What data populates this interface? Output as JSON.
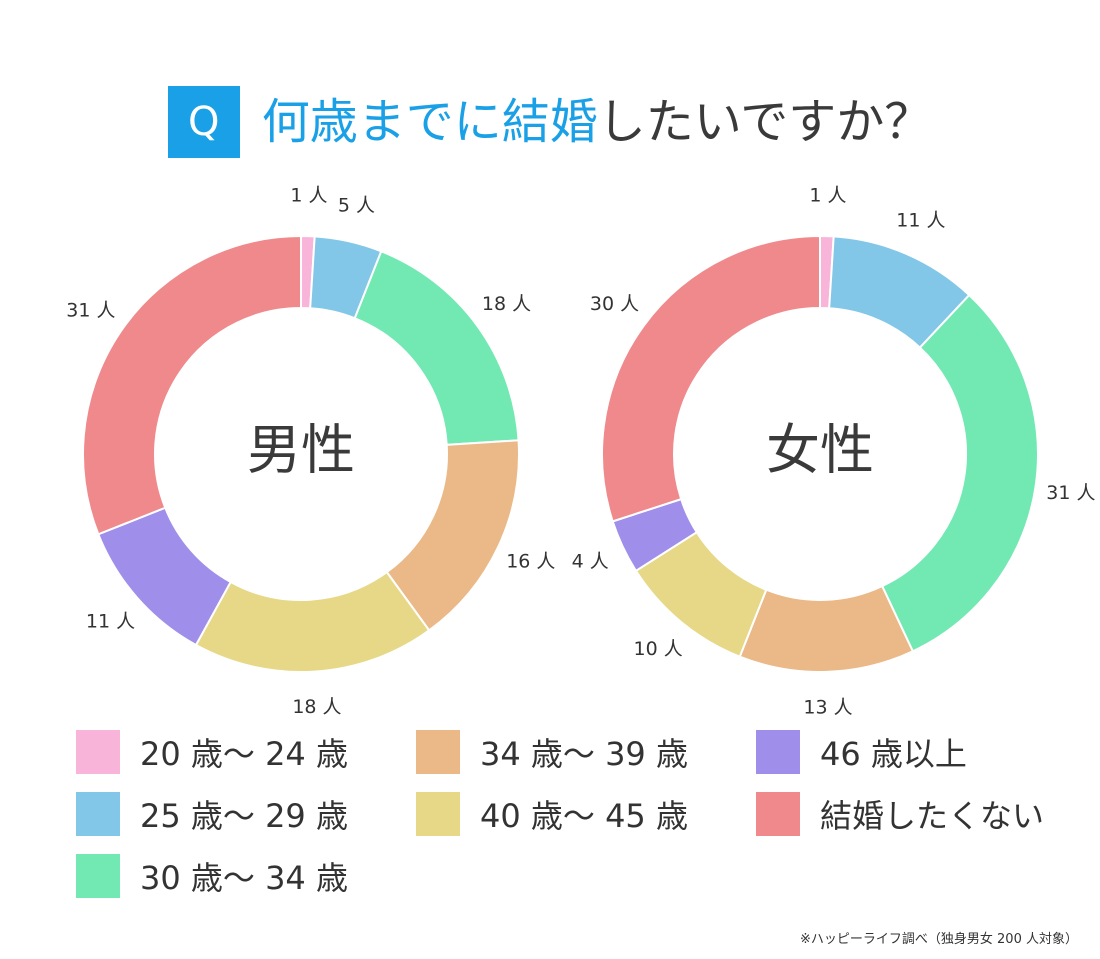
{
  "title": {
    "badge": "Q",
    "main": "何歳までに結婚",
    "rest": "したいですか？"
  },
  "chart_data": [
    {
      "type": "pie",
      "subtype": "donut",
      "title": "男性",
      "categories": [
        "20 歳〜 24 歳",
        "25 歳〜 29 歳",
        "30 歳〜 34 歳",
        "34 歳〜 39 歳",
        "40 歳〜 45 歳",
        "46 歳以上",
        "結婚したくない"
      ],
      "values": [
        1,
        5,
        18,
        16,
        18,
        11,
        31
      ],
      "labels": [
        "1 人",
        "5 人",
        "18 人",
        "16 人",
        "18 人",
        "11 人",
        "31 人"
      ]
    },
    {
      "type": "pie",
      "subtype": "donut",
      "title": "女性",
      "categories": [
        "20 歳〜 24 歳",
        "25 歳〜 29 歳",
        "30 歳〜 34 歳",
        "34 歳〜 39 歳",
        "40 歳〜 45 歳",
        "46 歳以上",
        "結婚したくない"
      ],
      "values": [
        1,
        11,
        31,
        13,
        10,
        4,
        30
      ],
      "labels": [
        "1 人",
        "11 人",
        "31 人",
        "13 人",
        "10 人",
        "4 人",
        "30 人"
      ]
    }
  ],
  "colors": [
    "#f8b4d9",
    "#82c6e8",
    "#72e8b2",
    "#ebb887",
    "#e6d886",
    "#a08fea",
    "#f0898b"
  ],
  "legend": [
    {
      "label": "20 歳〜 24 歳",
      "color": "#f8b4d9"
    },
    {
      "label": "25 歳〜 29 歳",
      "color": "#82c6e8"
    },
    {
      "label": "30 歳〜 34 歳",
      "color": "#72e8b2"
    },
    {
      "label": "34 歳〜 39 歳",
      "color": "#ebb887"
    },
    {
      "label": "40 歳〜 45 歳",
      "color": "#e6d886"
    },
    {
      "label": "46 歳以上",
      "color": "#a08fea"
    },
    {
      "label": "結婚したくない",
      "color": "#f0898b"
    }
  ],
  "source": "※ハッピーライフ調べ（独身男女 200 人対象）"
}
